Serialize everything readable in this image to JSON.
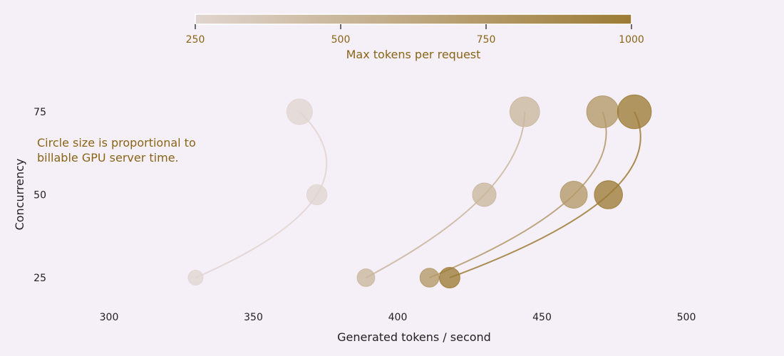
{
  "chart_data": {
    "type": "scatter",
    "title": "",
    "xlabel": "Generated tokens / second",
    "ylabel": "Concurrency",
    "xlim": [
      280,
      535
    ],
    "ylim": [
      14,
      100
    ],
    "x_ticks": [
      300,
      350,
      400,
      450,
      500
    ],
    "y_ticks": [
      25,
      50,
      75
    ],
    "grid": false,
    "size_note": "Circle size is proportional to billable GPU server time.",
    "colorbar": {
      "label": "Max tokens per request",
      "range": [
        250,
        1000
      ],
      "ticks": [
        250,
        500,
        750,
        1000
      ],
      "color_low": "#e0d5cf",
      "color_high": "#9c7b35"
    },
    "label_color": "#8a6416",
    "series": [
      {
        "max_tokens": 250,
        "points": [
          {
            "concurrency": 25,
            "tokens_per_second": 330,
            "relative_size": 0.55
          },
          {
            "concurrency": 50,
            "tokens_per_second": 372,
            "relative_size": 0.75
          },
          {
            "concurrency": 75,
            "tokens_per_second": 366,
            "relative_size": 0.95
          }
        ]
      },
      {
        "max_tokens": 500,
        "points": [
          {
            "concurrency": 25,
            "tokens_per_second": 389,
            "relative_size": 0.65
          },
          {
            "concurrency": 50,
            "tokens_per_second": 430,
            "relative_size": 0.87
          },
          {
            "concurrency": 75,
            "tokens_per_second": 444,
            "relative_size": 1.1
          }
        ]
      },
      {
        "max_tokens": 750,
        "points": [
          {
            "concurrency": 25,
            "tokens_per_second": 411,
            "relative_size": 0.7
          },
          {
            "concurrency": 50,
            "tokens_per_second": 461,
            "relative_size": 1.0
          },
          {
            "concurrency": 75,
            "tokens_per_second": 471,
            "relative_size": 1.18
          }
        ]
      },
      {
        "max_tokens": 1000,
        "points": [
          {
            "concurrency": 25,
            "tokens_per_second": 418,
            "relative_size": 0.76
          },
          {
            "concurrency": 50,
            "tokens_per_second": 473,
            "relative_size": 1.04
          },
          {
            "concurrency": 75,
            "tokens_per_second": 482,
            "relative_size": 1.25
          }
        ]
      }
    ]
  }
}
